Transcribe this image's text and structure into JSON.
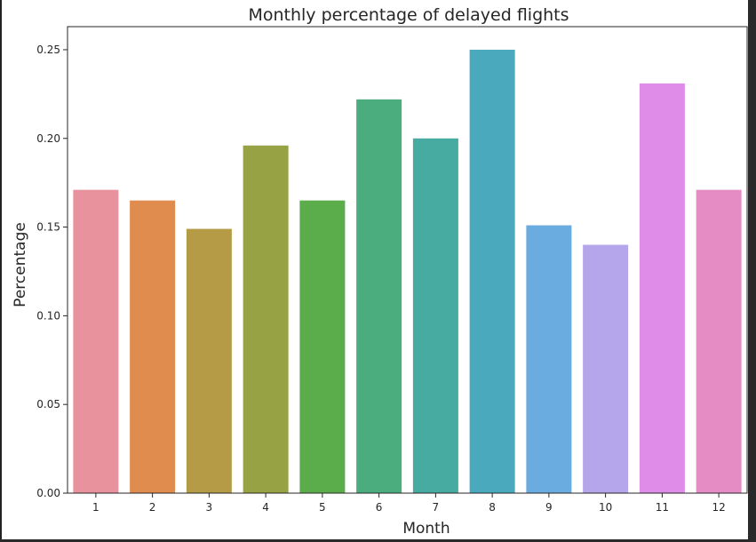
{
  "chart_data": {
    "type": "bar",
    "title": "Monthly percentage of delayed flights",
    "xlabel": "Month",
    "ylabel": "Percentage",
    "categories": [
      "1",
      "2",
      "3",
      "4",
      "5",
      "6",
      "7",
      "8",
      "9",
      "10",
      "11",
      "12"
    ],
    "values": [
      0.171,
      0.165,
      0.149,
      0.196,
      0.165,
      0.222,
      0.2,
      0.25,
      0.151,
      0.14,
      0.231,
      0.171
    ],
    "colors": [
      "#e8929e",
      "#e08c4e",
      "#b59b46",
      "#96a243",
      "#5aad4a",
      "#4bac7e",
      "#48aba2",
      "#4ba9bd",
      "#6aabe0",
      "#b5a5eb",
      "#df8be8",
      "#e68cc5"
    ],
    "ylim": [
      0,
      0.263
    ],
    "yticks": [
      "0.00",
      "0.05",
      "0.10",
      "0.15",
      "0.20",
      "0.25"
    ],
    "grid": false,
    "legend": "none"
  }
}
